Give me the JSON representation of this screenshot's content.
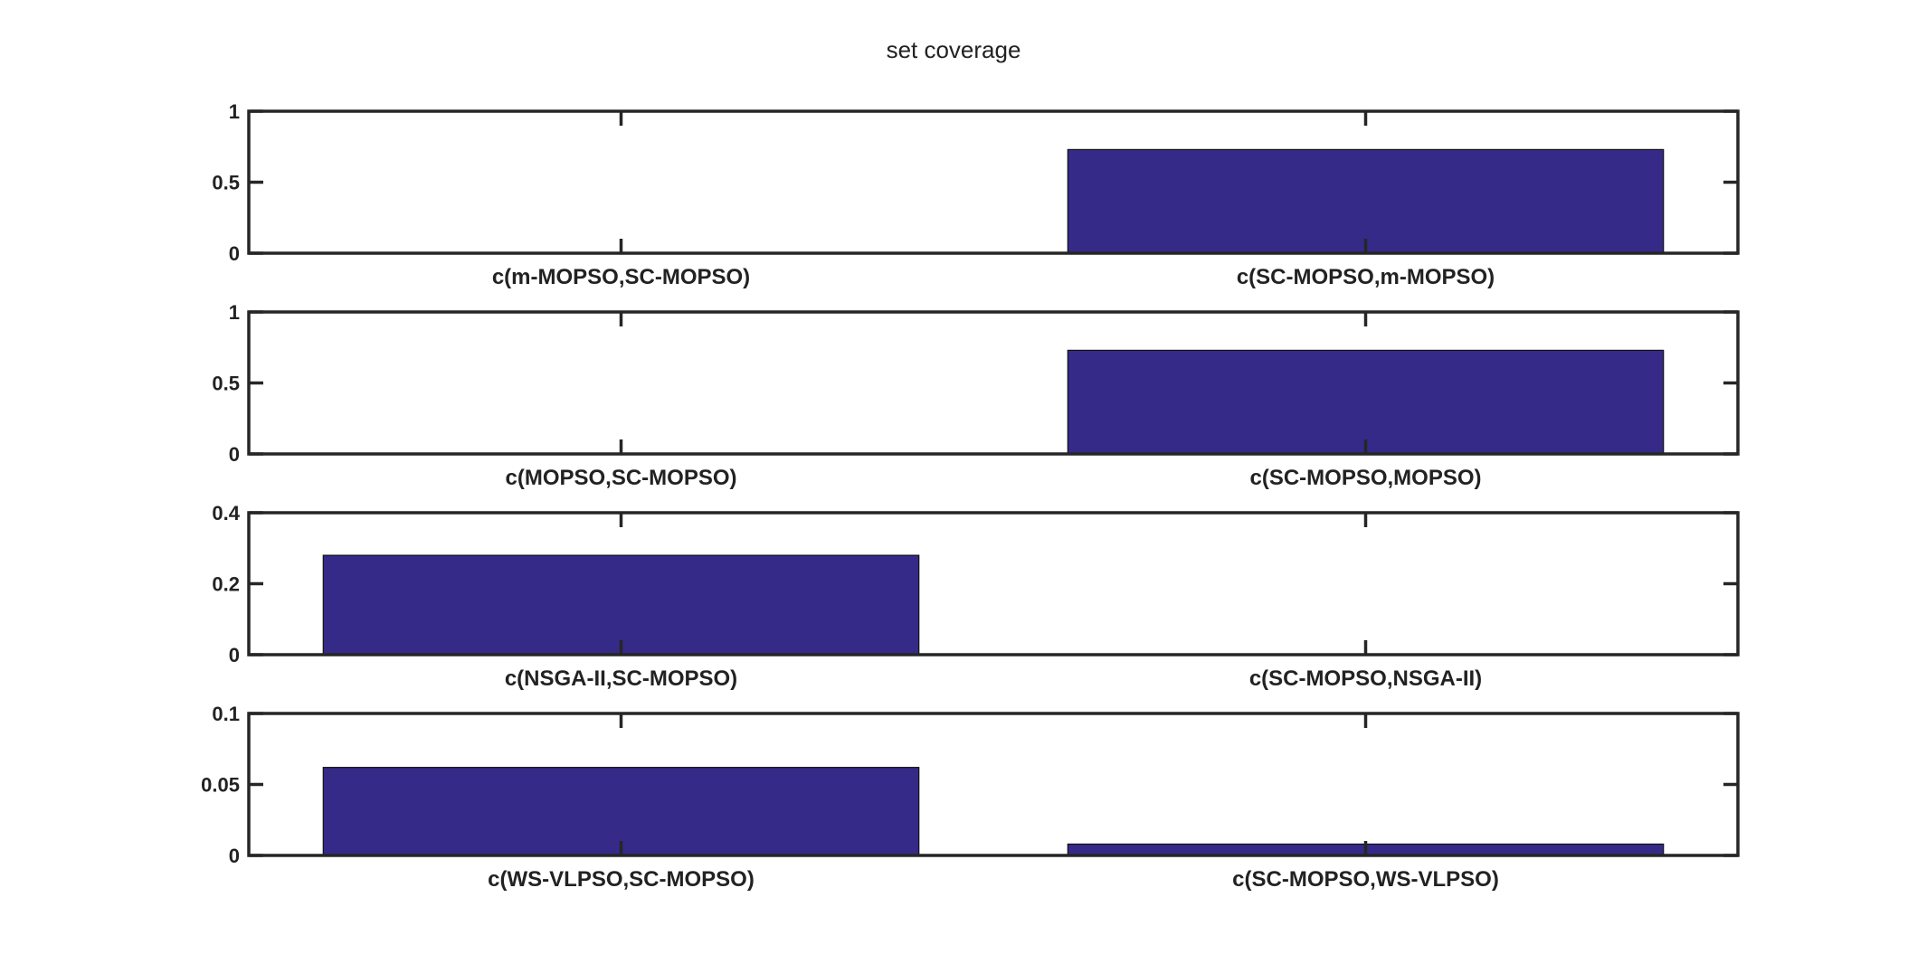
{
  "title": "set coverage",
  "colors": {
    "bar": "#352a87",
    "axis": "#262626",
    "text": "#222222"
  },
  "chart_data": [
    {
      "type": "bar",
      "categories": [
        "c(m-MOPSO,SC-MOPSO)",
        "c(SC-MOPSO,m-MOPSO)"
      ],
      "values": [
        0,
        0.73
      ],
      "ylim": [
        0,
        1
      ],
      "yticks": [
        "0",
        "0.5",
        "1"
      ],
      "grid": false
    },
    {
      "type": "bar",
      "categories": [
        "c(MOPSO,SC-MOPSO)",
        "c(SC-MOPSO,MOPSO)"
      ],
      "values": [
        0,
        0.73
      ],
      "ylim": [
        0,
        1
      ],
      "yticks": [
        "0",
        "0.5",
        "1"
      ],
      "grid": false
    },
    {
      "type": "bar",
      "categories": [
        "c(NSGA-II,SC-MOPSO)",
        "c(SC-MOPSO,NSGA-II)"
      ],
      "values": [
        0.28,
        0
      ],
      "ylim": [
        0,
        0.4
      ],
      "yticks": [
        "0",
        "0.2",
        "0.4"
      ],
      "grid": false
    },
    {
      "type": "bar",
      "categories": [
        "c(WS-VLPSO,SC-MOPSO)",
        "c(SC-MOPSO,WS-VLPSO)"
      ],
      "values": [
        0.062,
        0.008
      ],
      "ylim": [
        0,
        0.1
      ],
      "yticks": [
        "0",
        "0.05",
        "0.1"
      ],
      "grid": false
    }
  ]
}
